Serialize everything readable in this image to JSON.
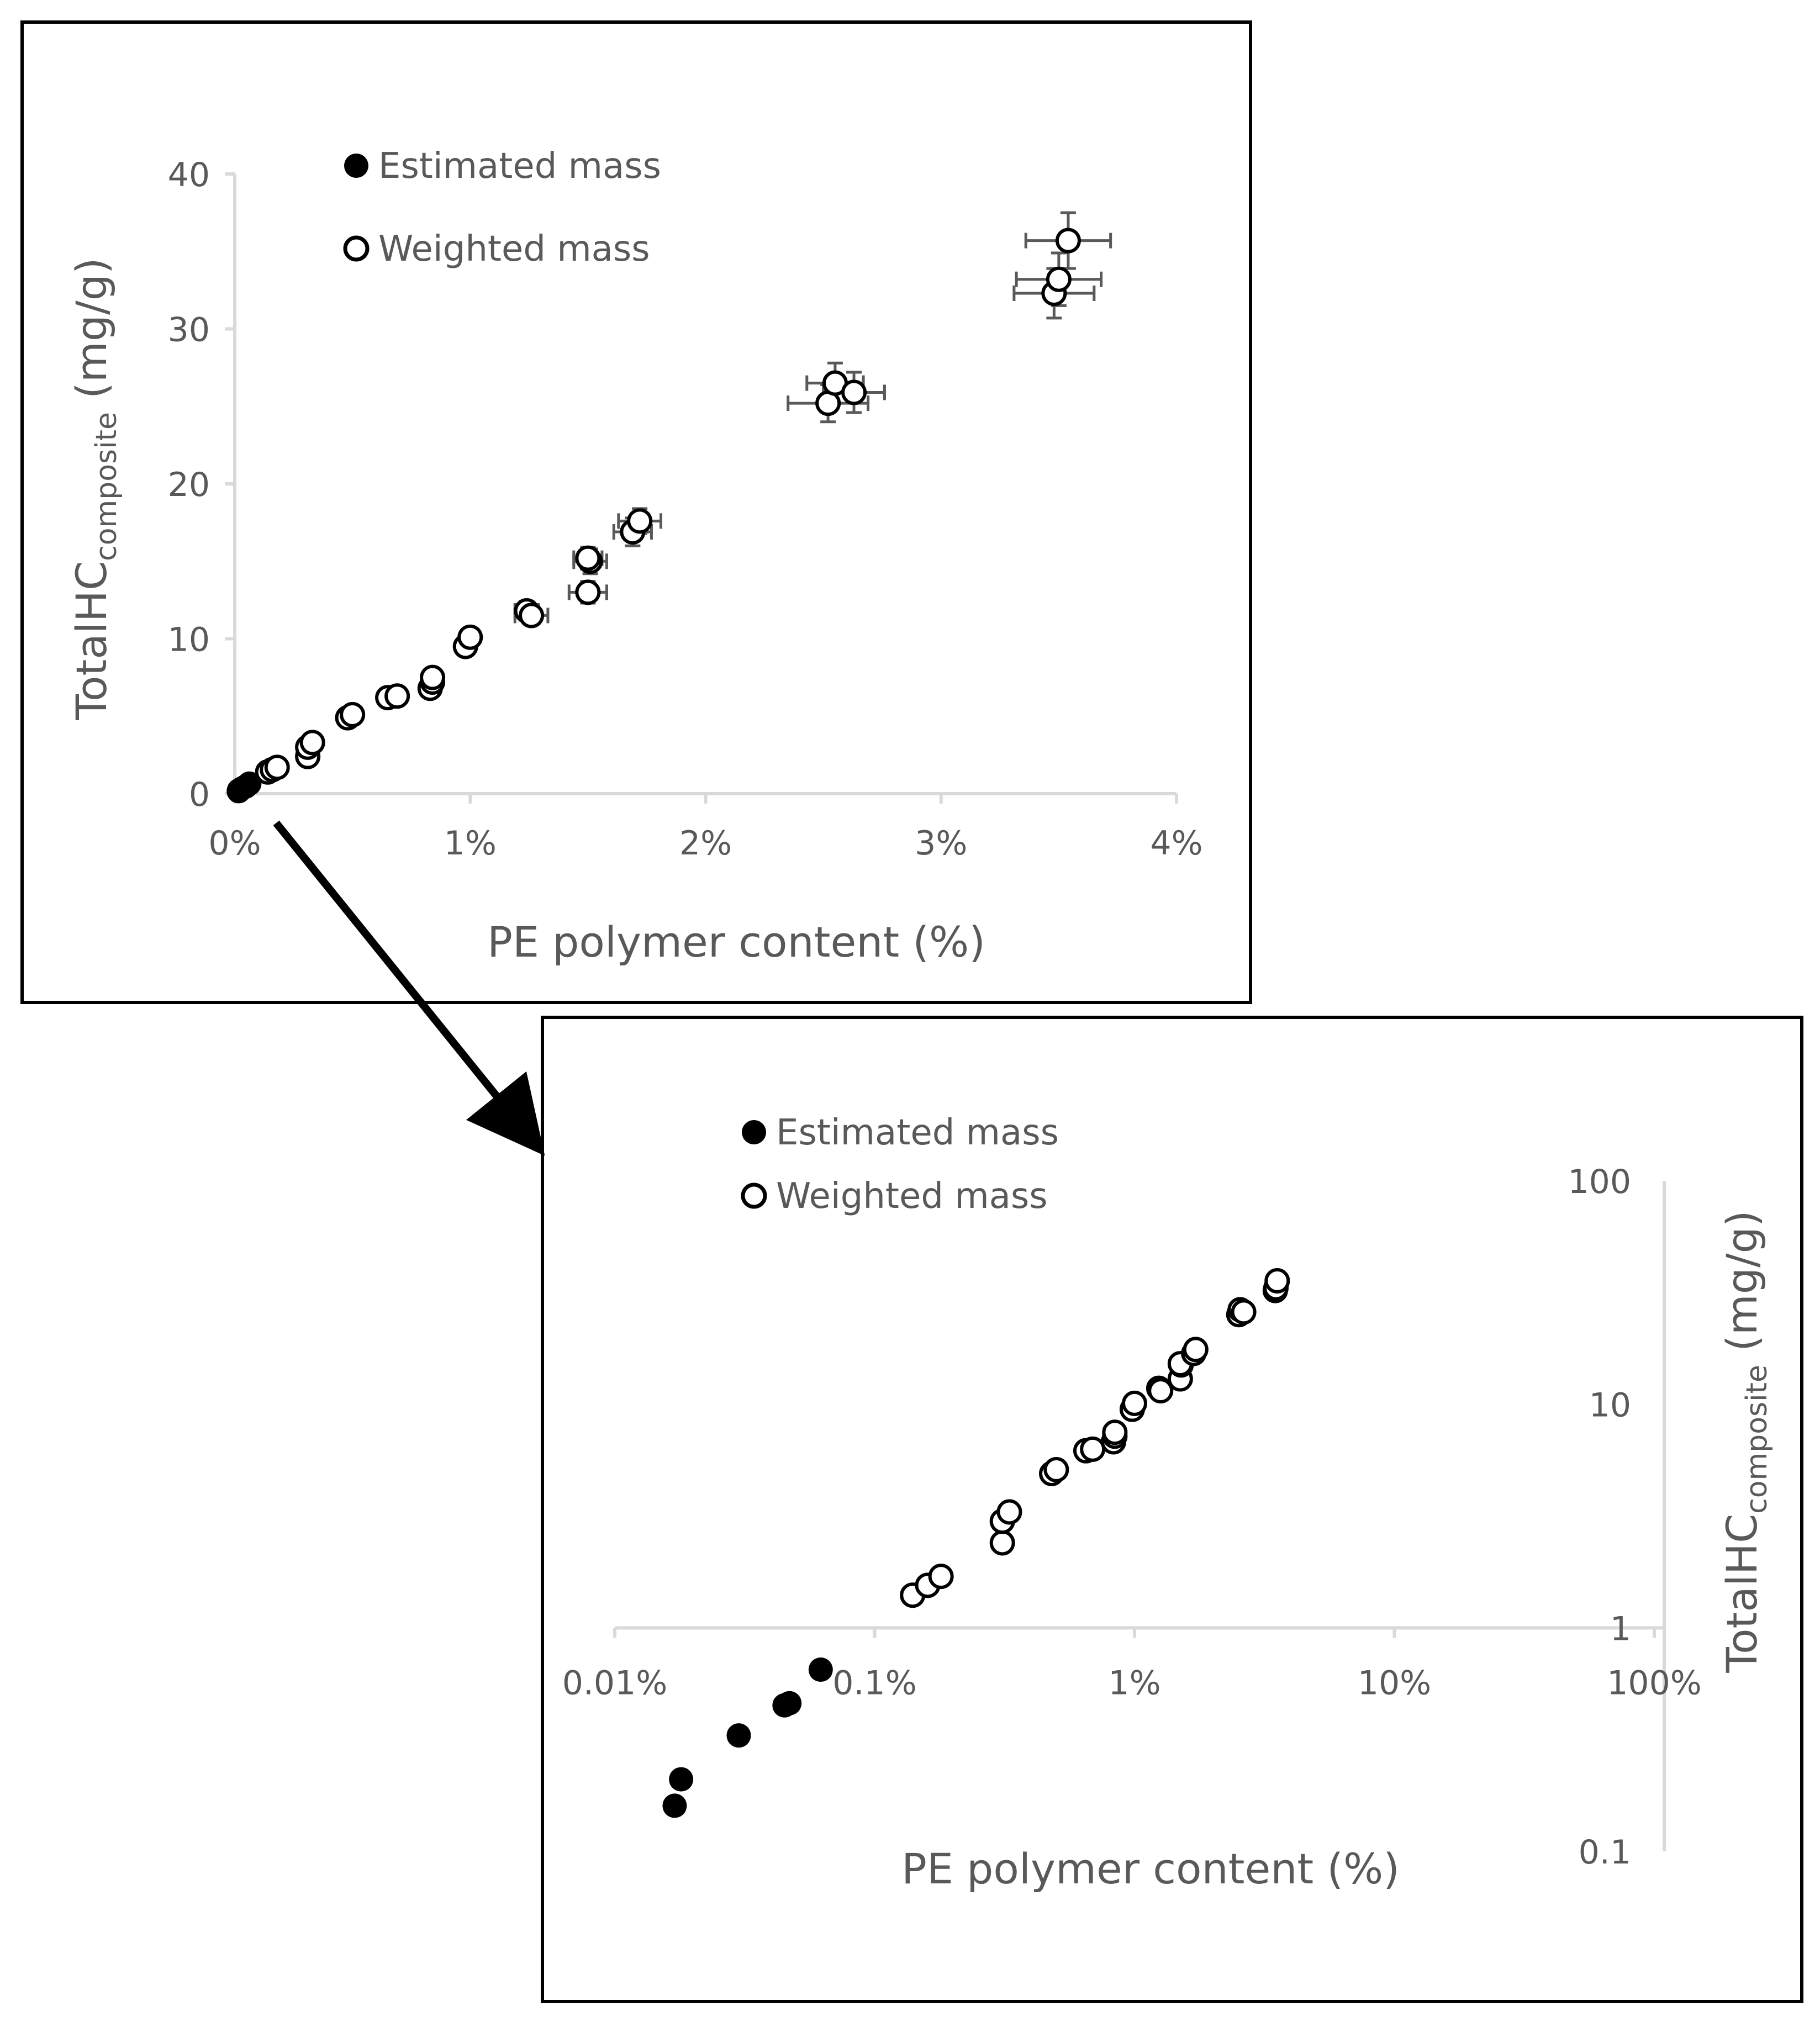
{
  "chart_data": [
    {
      "type": "scatter",
      "panel": "linear",
      "xlabel": "PE polymer content (%)",
      "ylabel_main": "TotalHC",
      "ylabel_sub": "composite",
      "ylabel_unit": " (mg/g)",
      "xlim": [
        0,
        4
      ],
      "ylim": [
        0,
        40
      ],
      "x_ticks": [
        0,
        1,
        2,
        3,
        4
      ],
      "x_tick_labels": [
        "0%",
        "1%",
        "2%",
        "3%",
        "4%"
      ],
      "y_ticks": [
        0,
        10,
        20,
        30,
        40
      ],
      "y_tick_labels": [
        "0",
        "10",
        "20",
        "30",
        "40"
      ],
      "legend_position": "top-left",
      "series": [
        {
          "name": "Estimated mass",
          "marker": "filled",
          "color": "#000000",
          "x": [
            0.017,
            0.018,
            0.03,
            0.045,
            0.047,
            0.062
          ],
          "y": [
            0.16,
            0.21,
            0.33,
            0.45,
            0.46,
            0.65
          ]
        },
        {
          "name": "Weighted mass",
          "marker": "open",
          "color": "#000000",
          "x": [
            0.14,
            0.16,
            0.18,
            0.31,
            0.31,
            0.33,
            0.48,
            0.5,
            0.65,
            0.69,
            0.83,
            0.84,
            0.84,
            0.98,
            1.0,
            1.24,
            1.26,
            1.5,
            1.51,
            1.5,
            1.69,
            1.72,
            2.52,
            2.55,
            2.63,
            3.48,
            3.5,
            3.54
          ],
          "y": [
            1.4,
            1.55,
            1.7,
            2.4,
            3.0,
            3.3,
            4.9,
            5.1,
            6.2,
            6.3,
            6.8,
            7.2,
            7.5,
            9.5,
            10.1,
            11.8,
            11.5,
            13.0,
            15.0,
            15.2,
            16.9,
            17.6,
            25.2,
            26.5,
            25.9,
            32.3,
            33.2,
            35.7
          ],
          "x_err": [
            0,
            0,
            0,
            0,
            0,
            0,
            0,
            0,
            0,
            0,
            0,
            0,
            0,
            0,
            0,
            0.05,
            0.07,
            0.08,
            0.07,
            0.06,
            0.08,
            0.09,
            0.17,
            0.12,
            0.13,
            0.17,
            0.18,
            0.18
          ],
          "y_err": [
            0,
            0,
            0,
            0,
            0,
            0,
            0,
            0,
            0,
            0,
            0,
            0,
            0,
            0,
            0,
            0.6,
            0.6,
            0.7,
            0.8,
            0.7,
            0.9,
            0.8,
            1.2,
            1.3,
            1.3,
            1.6,
            1.7,
            1.8
          ]
        }
      ]
    },
    {
      "type": "scatter",
      "panel": "log-log",
      "xlabel": "PE polymer content (%)",
      "ylabel_main": "TotalHC",
      "ylabel_sub": "composite",
      "ylabel_unit": " (mg/g)",
      "x_scale": "log",
      "y_scale": "log",
      "xlim": [
        0.01,
        100
      ],
      "ylim": [
        0.1,
        100
      ],
      "x_ticks": [
        0.01,
        0.1,
        1,
        10,
        100
      ],
      "x_tick_labels": [
        "0.01%",
        "0.1%",
        "1%",
        "10%",
        "100%"
      ],
      "y_ticks": [
        0.1,
        1,
        10,
        100
      ],
      "y_tick_labels": [
        "0.1",
        "1",
        "10",
        "100"
      ],
      "x_axis_crosses_y_at": 1,
      "y_axis_position": "right",
      "legend_position": "top-left"
    }
  ]
}
